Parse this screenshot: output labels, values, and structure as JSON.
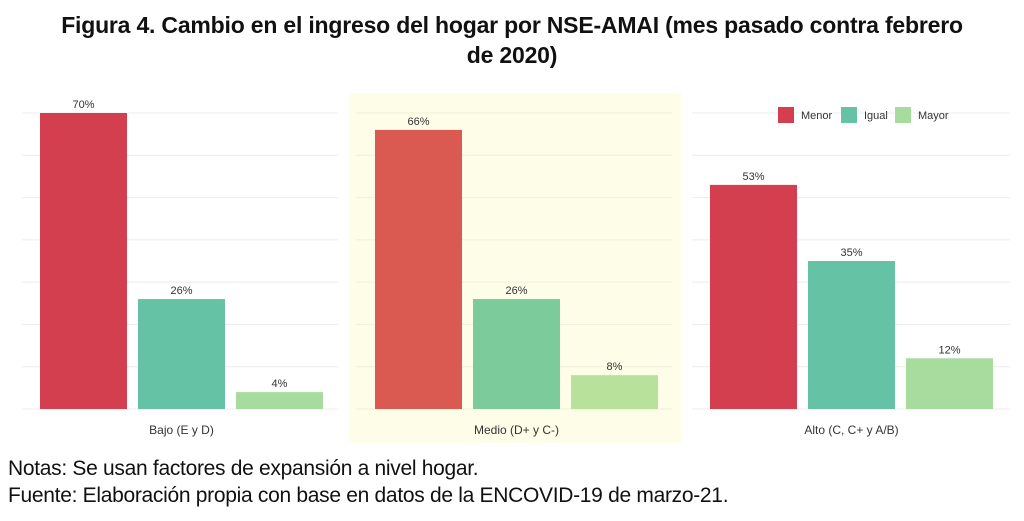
{
  "title_line1": "Figura 4. Cambio en el ingreso del hogar por NSE-AMAI (mes pasado contra febrero",
  "title_line2": "de 2020)",
  "notes": {
    "line1": "Notas: Se usan factores de expansión a nivel hogar.",
    "line2": "Fuente: Elaboración propia con base en datos de la ENCOVID-19 de marzo-21."
  },
  "chart_data": {
    "type": "bar",
    "title": "Figura 4. Cambio en el ingreso del hogar por NSE-AMAI (mes pasado contra febrero de 2020)",
    "xlabel": "",
    "ylabel": "",
    "ylim": [
      0,
      70
    ],
    "grid": true,
    "grid_step": 10,
    "legend_position": "top-right",
    "legend": [
      "Menor",
      "Igual",
      "Mayor"
    ],
    "panels": [
      {
        "name": "Bajo (E y D)",
        "highlighted": false,
        "colors": [
          "#d43f4f",
          "#66c2a5",
          "#a8dc9e"
        ],
        "values": [
          70,
          26,
          4
        ],
        "labels": [
          "70%",
          "26%",
          "4%"
        ]
      },
      {
        "name": "Medio (D+ y C-)",
        "highlighted": true,
        "colors": [
          "#da5a52",
          "#7ccb9b",
          "#b8e29b"
        ],
        "values": [
          66,
          26,
          8
        ],
        "labels": [
          "66%",
          "26%",
          "8%"
        ]
      },
      {
        "name": "Alto (C, C+ y A/B)",
        "highlighted": false,
        "colors": [
          "#d43f4f",
          "#66c2a5",
          "#a8dc9e"
        ],
        "values": [
          53,
          35,
          12
        ],
        "labels": [
          "53%",
          "35%",
          "12%"
        ]
      }
    ],
    "series": [
      {
        "name": "Menor",
        "color": "#d43f4f",
        "values": [
          70,
          66,
          53
        ]
      },
      {
        "name": "Igual",
        "color": "#66c2a5",
        "values": [
          26,
          26,
          35
        ]
      },
      {
        "name": "Mayor",
        "color": "#a8dc9e",
        "values": [
          4,
          8,
          12
        ]
      }
    ],
    "categories": [
      "Bajo (E y D)",
      "Medio (D+ y C-)",
      "Alto (C, C+ y A/B)"
    ],
    "highlight_color": "#fefde8"
  }
}
